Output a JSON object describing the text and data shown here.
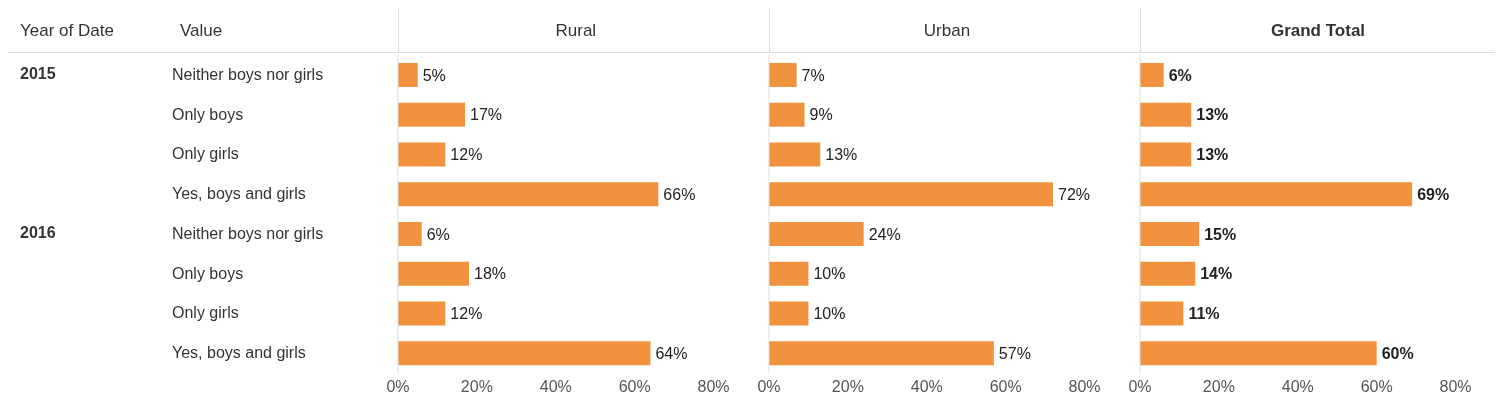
{
  "chart_data": [
    {
      "type": "bar",
      "orientation": "horizontal",
      "title": "Rural",
      "ylabel": "Value",
      "annotations": [
        "Year of Date",
        "2015",
        "2016"
      ],
      "categories": [
        "Neither boys nor girls",
        "Only boys",
        "Only girls",
        "Yes, boys and girls",
        "Neither boys nor girls",
        "Only boys",
        "Only girls",
        "Yes, boys and girls"
      ],
      "values": [
        5,
        17,
        12,
        66,
        6,
        18,
        12,
        64
      ],
      "color": "#f0923e",
      "value_labels": [
        "5%",
        "17%",
        "12%",
        "66%",
        "6%",
        "18%",
        "12%",
        "64%"
      ],
      "xlim": [
        0,
        90
      ],
      "xticks": [
        {
          "value": 0,
          "label": "0%"
        },
        {
          "value": 20,
          "label": "20%"
        },
        {
          "value": 40,
          "label": "40%"
        },
        {
          "value": 60,
          "label": "60%"
        },
        {
          "value": 80,
          "label": "80%"
        }
      ]
    },
    {
      "type": "bar",
      "orientation": "horizontal",
      "title": "Urban",
      "tick_labels": "x",
      "values": [
        7,
        9,
        13,
        72,
        24,
        10,
        10,
        57
      ],
      "color": "#f0923e",
      "value_labels": [
        "7%",
        "9%",
        "13%",
        "72%",
        "24%",
        "10%",
        "10%",
        "57%"
      ],
      "xlim": [
        0,
        90
      ],
      "xticks": [
        {
          "value": 0,
          "label": "0%"
        },
        {
          "value": 20,
          "label": "20%"
        },
        {
          "value": 40,
          "label": "40%"
        },
        {
          "value": 60,
          "label": "60%"
        },
        {
          "value": 80,
          "label": "80%"
        }
      ]
    },
    {
      "type": "bar",
      "orientation": "horizontal",
      "title": "Grand Total",
      "tick_labels": "x",
      "values": [
        6,
        13,
        13,
        69,
        15,
        14,
        11,
        60
      ],
      "color": "#f0923e",
      "value_labels": [
        "6%",
        "13%",
        "13%",
        "69%",
        "15%",
        "14%",
        "11%",
        "60%"
      ],
      "xlim": [
        0,
        90
      ],
      "xticks": [
        {
          "value": 0,
          "label": "0%"
        },
        {
          "value": 20,
          "label": "20%"
        },
        {
          "value": 40,
          "label": "40%"
        },
        {
          "value": 60,
          "label": "60%"
        },
        {
          "value": 80,
          "label": "80%"
        }
      ]
    }
  ]
}
